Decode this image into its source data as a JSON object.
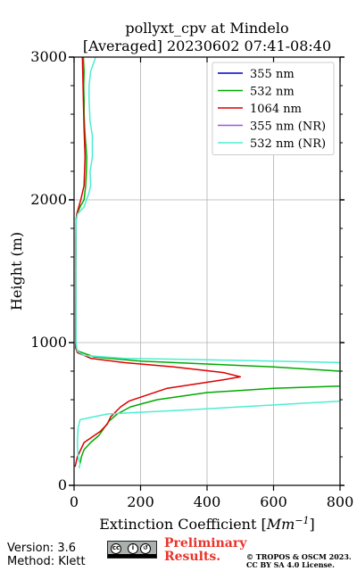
{
  "header": {
    "title_line1": "pollyxt_cpv at Mindelo",
    "title_line2": "[Averaged] 20230602 07:41-08:40"
  },
  "footer": {
    "version": "Version: 3.6",
    "method": "Method: Klett",
    "preliminary_line1": "Preliminary",
    "preliminary_line2": "Results.",
    "license_line1": "© TROPOS & OSCM 2023.",
    "license_line2": "CC BY SA 4.0 License.",
    "badge_icon": "cc-by-sa-icon"
  },
  "chart_data": {
    "type": "line",
    "xlabel": "Extinction Coefficient [",
    "xlabel_unit": "Mm",
    "xlabel_exp": "−1",
    "xlabel_end": "]",
    "ylabel": "Height (m)",
    "xlim": [
      0,
      800
    ],
    "ylim": [
      0,
      3000
    ],
    "xticks": [
      0,
      200,
      400,
      600,
      800
    ],
    "yticks": [
      0,
      1000,
      2000,
      3000
    ],
    "grid": true,
    "legend_position": "top-right",
    "series": [
      {
        "name": "355 nm",
        "color": "#0000cc",
        "points": []
      },
      {
        "name": "532 nm",
        "color": "#00aa00",
        "points": [
          [
            18,
            150
          ],
          [
            22,
            200
          ],
          [
            30,
            250
          ],
          [
            50,
            300
          ],
          [
            75,
            350
          ],
          [
            90,
            400
          ],
          [
            105,
            450
          ],
          [
            130,
            500
          ],
          [
            170,
            550
          ],
          [
            250,
            600
          ],
          [
            400,
            650
          ],
          [
            600,
            680
          ],
          [
            800,
            695
          ],
          [
            800,
            800
          ],
          [
            600,
            830
          ],
          [
            400,
            850
          ],
          [
            200,
            870
          ],
          [
            60,
            900
          ],
          [
            12,
            940
          ],
          [
            5,
            960
          ],
          [
            5,
            1000
          ],
          [
            5,
            1500
          ],
          [
            6,
            1850
          ],
          [
            8,
            1900
          ],
          [
            20,
            1960
          ],
          [
            30,
            2000
          ],
          [
            35,
            2100
          ],
          [
            37,
            2200
          ],
          [
            38,
            2300
          ],
          [
            35,
            2400
          ],
          [
            32,
            2500
          ],
          [
            30,
            2600
          ],
          [
            30,
            2700
          ],
          [
            29,
            2800
          ],
          [
            30,
            2900
          ],
          [
            28,
            3000
          ]
        ]
      },
      {
        "name": "1064 nm",
        "color": "#dd0000",
        "points": [
          [
            3,
            130
          ],
          [
            10,
            200
          ],
          [
            30,
            300
          ],
          [
            80,
            380
          ],
          [
            100,
            430
          ],
          [
            110,
            480
          ],
          [
            140,
            550
          ],
          [
            165,
            590
          ],
          [
            280,
            680
          ],
          [
            450,
            740
          ],
          [
            500,
            760
          ],
          [
            450,
            790
          ],
          [
            300,
            830
          ],
          [
            150,
            860
          ],
          [
            50,
            890
          ],
          [
            10,
            930
          ],
          [
            5,
            960
          ],
          [
            5,
            1000
          ],
          [
            5,
            1500
          ],
          [
            6,
            1850
          ],
          [
            8,
            1900
          ],
          [
            20,
            2000
          ],
          [
            30,
            2100
          ],
          [
            33,
            2300
          ],
          [
            30,
            2500
          ],
          [
            28,
            2700
          ],
          [
            26,
            2900
          ],
          [
            25,
            3000
          ]
        ]
      },
      {
        "name": "355 nm (NR)",
        "color": "#9b59d6",
        "points": []
      },
      {
        "name": "532 nm (NR)",
        "color": "#4deed0",
        "points": [
          [
            15,
            120
          ],
          [
            18,
            150
          ],
          [
            12,
            200
          ],
          [
            10,
            300
          ],
          [
            12,
            400
          ],
          [
            18,
            460
          ],
          [
            100,
            500
          ],
          [
            350,
            530
          ],
          [
            800,
            590
          ],
          [
            800,
            860
          ],
          [
            600,
            870
          ],
          [
            400,
            880
          ],
          [
            150,
            890
          ],
          [
            30,
            910
          ],
          [
            10,
            940
          ],
          [
            8,
            960
          ],
          [
            6,
            1000
          ],
          [
            5,
            1500
          ],
          [
            6,
            1850
          ],
          [
            10,
            1900
          ],
          [
            30,
            1950
          ],
          [
            45,
            2050
          ],
          [
            50,
            2100
          ],
          [
            48,
            2200
          ],
          [
            55,
            2300
          ],
          [
            55,
            2450
          ],
          [
            48,
            2550
          ],
          [
            45,
            2700
          ],
          [
            45,
            2800
          ],
          [
            50,
            2900
          ],
          [
            65,
            3000
          ]
        ]
      }
    ]
  }
}
